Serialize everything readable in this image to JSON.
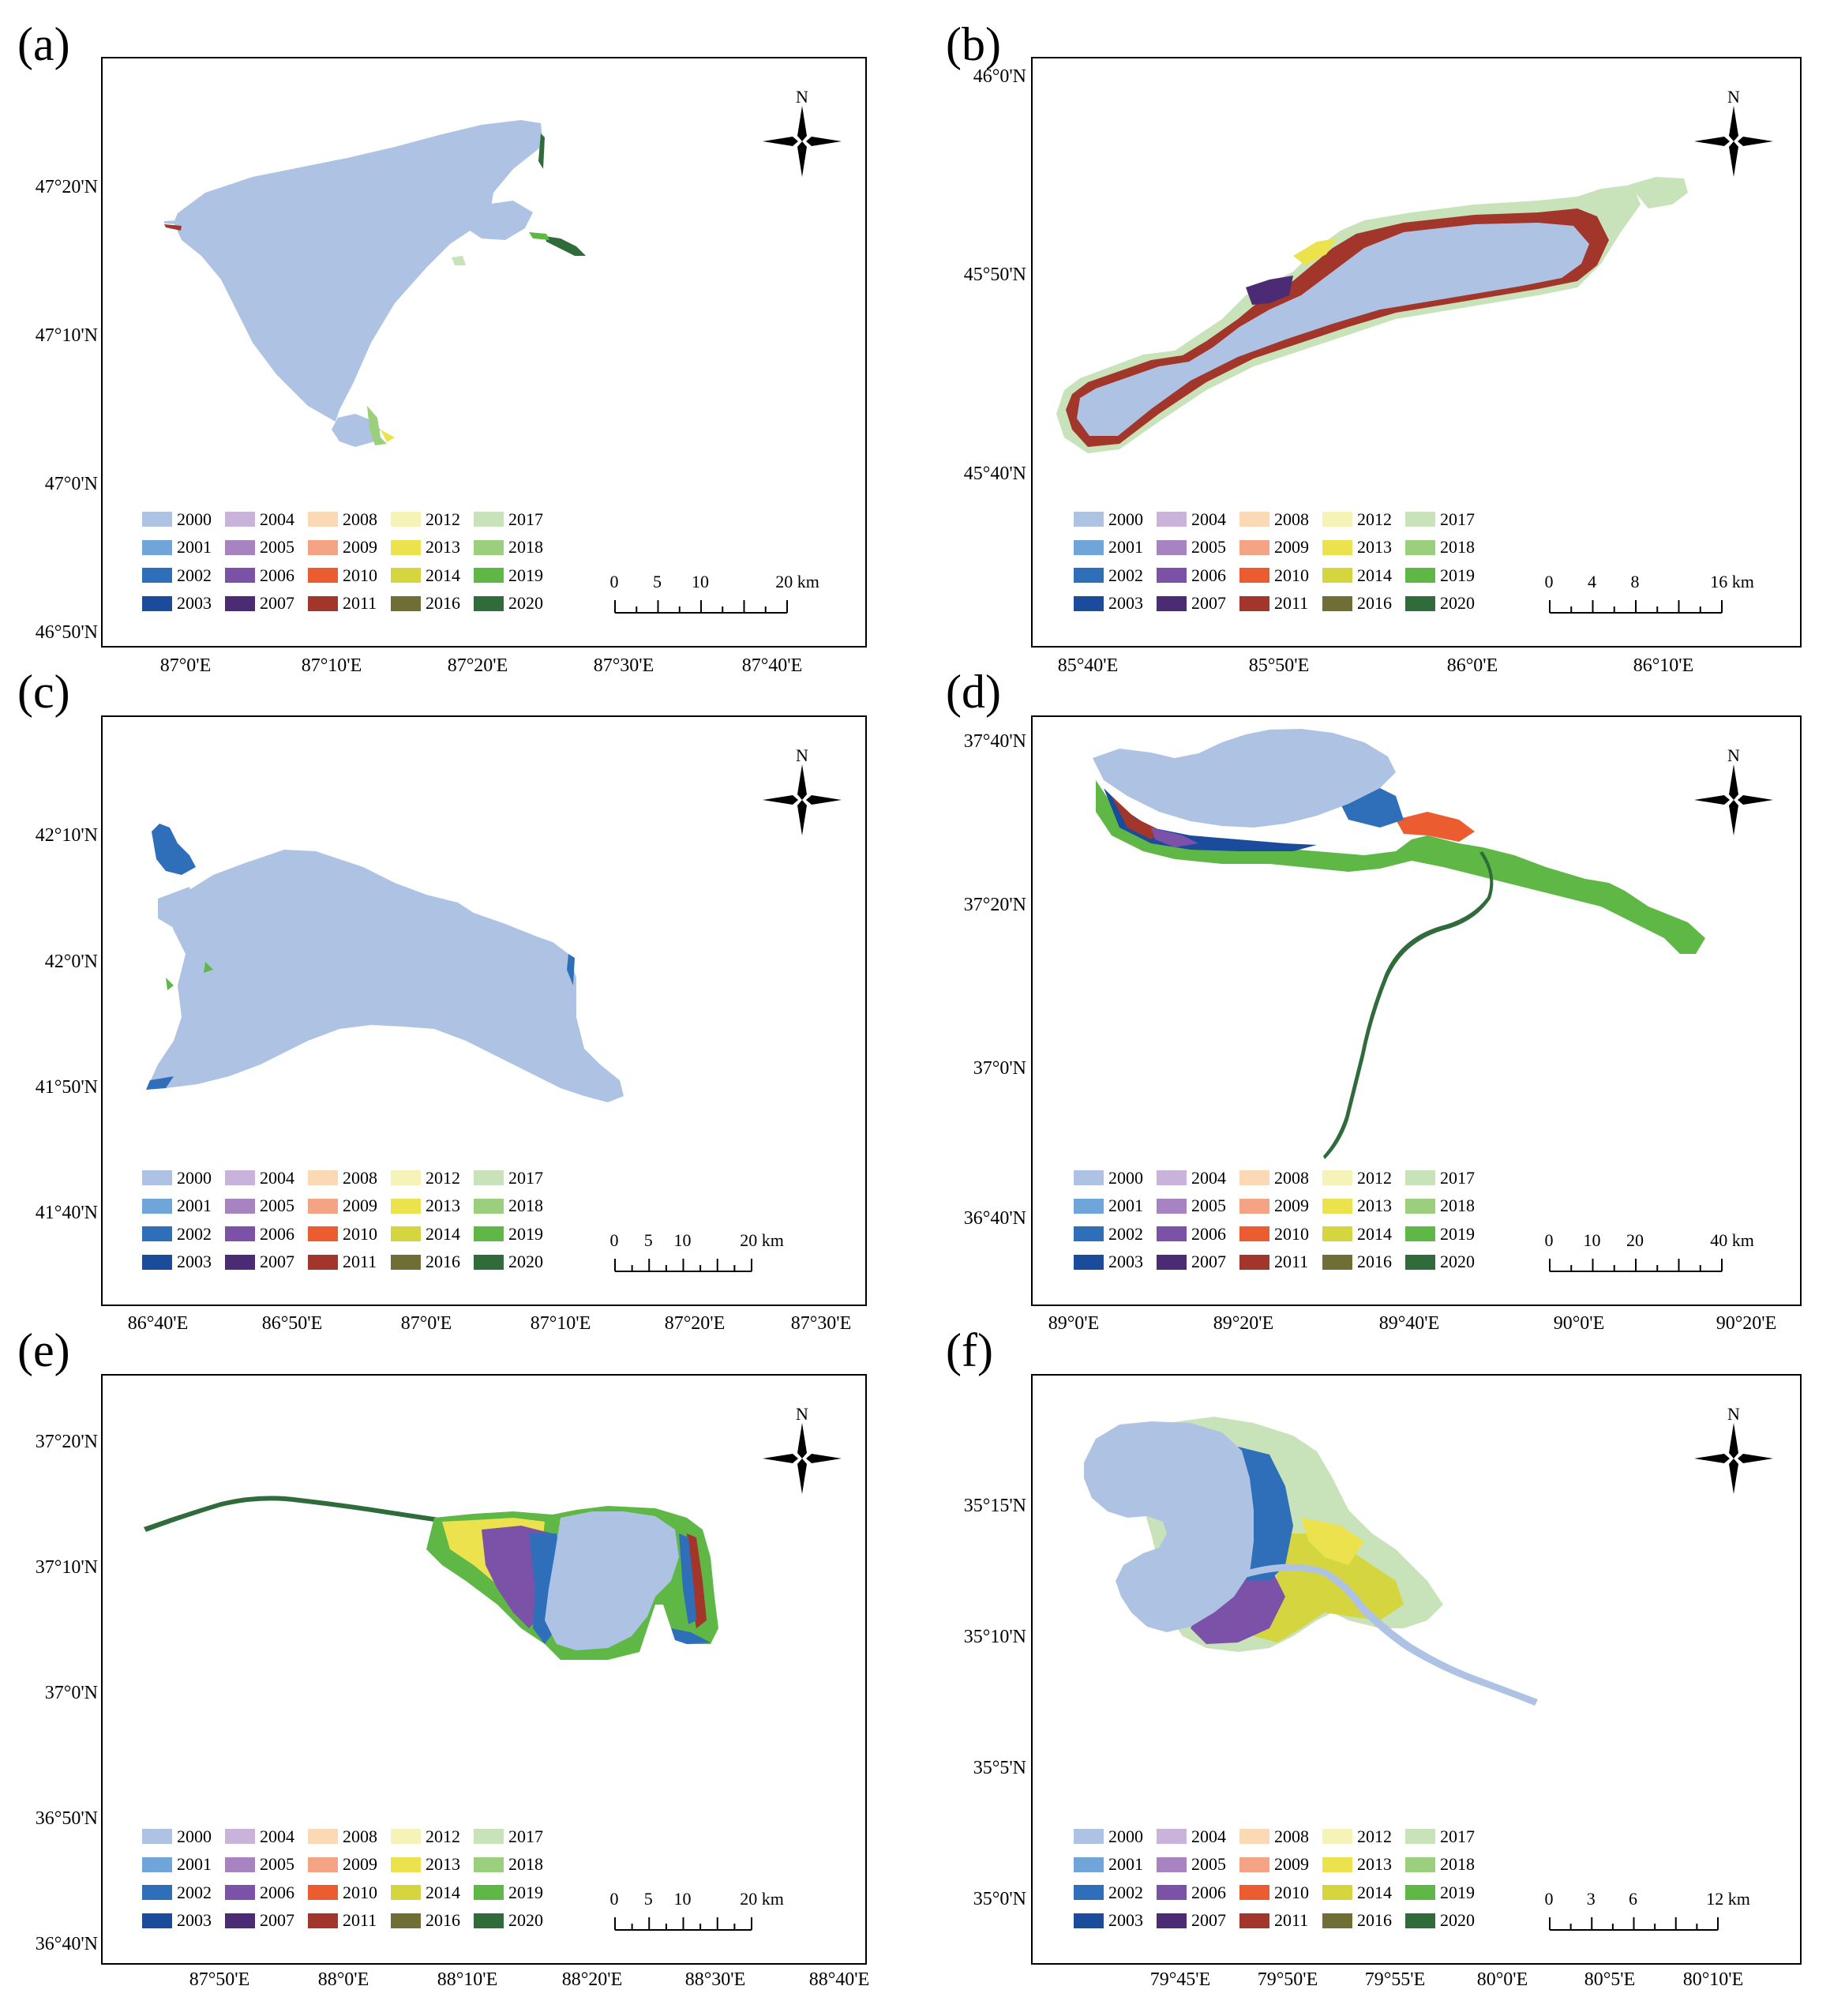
{
  "colors": {
    "2000": "#aec3e4",
    "2001": "#6fa5d9",
    "2002": "#2f6fba",
    "2003": "#1b4c9b",
    "2004": "#c9b3da",
    "2005": "#a783c1",
    "2006": "#7c52a8",
    "2007": "#4a2b74",
    "2008": "#fbd9b4",
    "2009": "#f5a385",
    "2010": "#ec5c31",
    "2011": "#a3362b",
    "2012": "#f6f3b9",
    "2013": "#ece24e",
    "2014": "#d5d63f",
    "2016": "#6f6f35",
    "2017": "#c8e2b9",
    "2018": "#9bcf7e",
    "2019": "#5fb745",
    "2020": "#2f6b3b"
  },
  "legend_years": [
    "2000",
    "2004",
    "2008",
    "2012",
    "2017",
    "2001",
    "2005",
    "2009",
    "2013",
    "2018",
    "2002",
    "2006",
    "2010",
    "2014",
    "2019",
    "2003",
    "2007",
    "2011",
    "2016",
    "2020"
  ],
  "north_label": "N",
  "panels": [
    {
      "label": "(a)",
      "y_ticks": [
        "47°20'N",
        "47°10'N",
        "47°0'N",
        "46°50'N"
      ],
      "x_ticks": [
        "87°0'E",
        "87°10'E",
        "87°20'E",
        "87°30'E",
        "87°40'E"
      ],
      "scale": {
        "labels": [
          "0",
          "5",
          "10",
          "20 km"
        ],
        "unit_stops": [
          0,
          5,
          10,
          20
        ]
      }
    },
    {
      "label": "(b)",
      "y_ticks": [
        "46°0'N",
        "45°50'N",
        "45°40'N"
      ],
      "x_ticks": [
        "85°40'E",
        "85°50'E",
        "86°0'E",
        "86°10'E"
      ],
      "scale": {
        "labels": [
          "0",
          "4",
          "8",
          "16 km"
        ],
        "unit_stops": [
          0,
          4,
          8,
          16
        ]
      }
    },
    {
      "label": "(c)",
      "y_ticks": [
        "42°10'N",
        "42°0'N",
        "41°50'N",
        "41°40'N"
      ],
      "x_ticks": [
        "86°40'E",
        "86°50'E",
        "87°0'E",
        "87°10'E",
        "87°20'E",
        "87°30'E"
      ],
      "scale": {
        "labels": [
          "0",
          "5",
          "10",
          "20 km"
        ],
        "unit_stops": [
          0,
          5,
          10,
          20
        ]
      }
    },
    {
      "label": "(d)",
      "y_ticks": [
        "37°40'N",
        "37°20'N",
        "37°0'N",
        "36°40'N"
      ],
      "x_ticks": [
        "89°0'E",
        "89°20'E",
        "89°40'E",
        "90°0'E",
        "90°20'E"
      ],
      "scale": {
        "labels": [
          "0",
          "10",
          "20",
          "40 km"
        ],
        "unit_stops": [
          0,
          10,
          20,
          40
        ]
      }
    },
    {
      "label": "(e)",
      "y_ticks": [
        "37°20'N",
        "37°10'N",
        "37°0'N",
        "36°50'N",
        "36°40'N"
      ],
      "x_ticks": [
        "87°50'E",
        "88°0'E",
        "88°10'E",
        "88°20'E",
        "88°30'E",
        "88°40'E"
      ],
      "scale": {
        "labels": [
          "0",
          "5",
          "10",
          "20 km"
        ],
        "unit_stops": [
          0,
          5,
          10,
          20
        ]
      }
    },
    {
      "label": "(f)",
      "y_ticks": [
        "35°15'N",
        "35°10'N",
        "35°5'N",
        "35°0'N"
      ],
      "x_ticks": [
        "79°45'E",
        "79°50'E",
        "79°55'E",
        "80°0'E",
        "80°5'E",
        "80°10'E"
      ],
      "scale": {
        "labels": [
          "0",
          "3",
          "6",
          "12 km"
        ],
        "unit_stops": [
          0,
          3,
          6,
          12
        ]
      }
    }
  ]
}
